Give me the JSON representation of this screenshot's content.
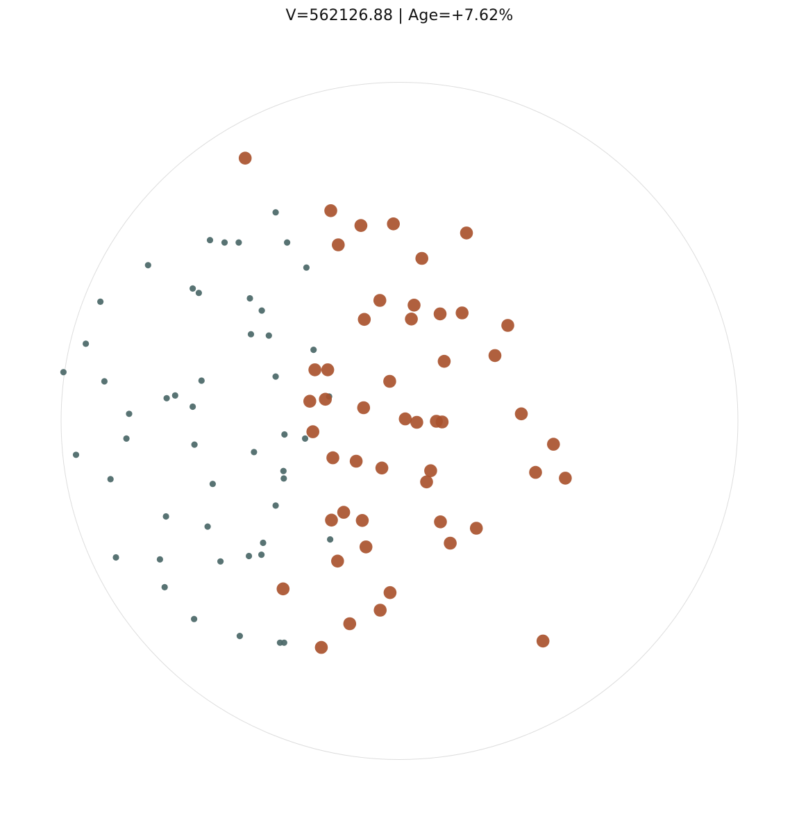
{
  "chart_data": {
    "type": "scatter",
    "title": "V=562126.88 | Age=+7.62%",
    "xlim": [
      -1,
      1
    ],
    "ylim": [
      -1,
      1
    ],
    "boundary": "circle",
    "grid": false,
    "colors": {
      "boundary": "#dddddd",
      "small_points": "#4f6b6b",
      "large_points": "#a9532e"
    },
    "series": [
      {
        "marker_size": "small",
        "points": [
          [
            -0.366,
            0.616
          ],
          [
            -0.56,
            0.534
          ],
          [
            -0.517,
            0.527
          ],
          [
            -0.475,
            0.527
          ],
          [
            -0.332,
            0.527
          ],
          [
            -0.743,
            0.46
          ],
          [
            -0.275,
            0.453
          ],
          [
            -0.611,
            0.391
          ],
          [
            -0.593,
            0.378
          ],
          [
            -0.884,
            0.352
          ],
          [
            -0.442,
            0.362
          ],
          [
            -0.407,
            0.326
          ],
          [
            -0.439,
            0.256
          ],
          [
            -0.386,
            0.252
          ],
          [
            -0.927,
            0.228
          ],
          [
            -0.254,
            0.21
          ],
          [
            -0.993,
            0.144
          ],
          [
            -0.872,
            0.117
          ],
          [
            -0.585,
            0.119
          ],
          [
            -0.366,
            0.131
          ],
          [
            -0.663,
            0.075
          ],
          [
            -0.688,
            0.067
          ],
          [
            -0.611,
            0.042
          ],
          [
            -0.799,
            0.021
          ],
          [
            -0.208,
            0.072
          ],
          [
            -0.807,
            -0.052
          ],
          [
            -0.34,
            -0.04
          ],
          [
            -0.279,
            -0.052
          ],
          [
            -0.606,
            -0.07
          ],
          [
            -0.43,
            -0.092
          ],
          [
            -0.956,
            -0.1
          ],
          [
            -0.342,
            -0.17
          ],
          [
            -0.854,
            -0.172
          ],
          [
            -0.552,
            -0.186
          ],
          [
            -0.343,
            -0.148
          ],
          [
            -0.366,
            -0.25
          ],
          [
            -0.69,
            -0.282
          ],
          [
            -0.567,
            -0.312
          ],
          [
            -0.205,
            -0.35
          ],
          [
            -0.403,
            -0.36
          ],
          [
            -0.838,
            -0.403
          ],
          [
            -0.708,
            -0.409
          ],
          [
            -0.529,
            -0.415
          ],
          [
            -0.445,
            -0.399
          ],
          [
            -0.408,
            -0.395
          ],
          [
            -0.694,
            -0.491
          ],
          [
            -0.607,
            -0.585
          ],
          [
            -0.472,
            -0.635
          ],
          [
            -0.353,
            -0.655
          ],
          [
            -0.341,
            -0.655
          ]
        ]
      },
      {
        "marker_size": "large",
        "points": [
          [
            -0.456,
            0.776
          ],
          [
            -0.203,
            0.621
          ],
          [
            -0.114,
            0.577
          ],
          [
            -0.018,
            0.582
          ],
          [
            0.198,
            0.555
          ],
          [
            -0.181,
            0.52
          ],
          [
            0.066,
            0.48
          ],
          [
            -0.058,
            0.356
          ],
          [
            0.043,
            0.342
          ],
          [
            -0.104,
            0.3
          ],
          [
            0.035,
            0.301
          ],
          [
            0.12,
            0.316
          ],
          [
            0.185,
            0.319
          ],
          [
            0.32,
            0.282
          ],
          [
            0.282,
            0.193
          ],
          [
            0.132,
            0.176
          ],
          [
            -0.25,
            0.151
          ],
          [
            -0.212,
            0.151
          ],
          [
            -0.029,
            0.117
          ],
          [
            -0.265,
            0.058
          ],
          [
            -0.219,
            0.064
          ],
          [
            -0.106,
            0.039
          ],
          [
            0.017,
            0.006
          ],
          [
            0.051,
            -0.004
          ],
          [
            0.109,
            -0.001
          ],
          [
            0.126,
            -0.003
          ],
          [
            0.36,
            0.021
          ],
          [
            -0.256,
            -0.032
          ],
          [
            0.455,
            -0.069
          ],
          [
            -0.197,
            -0.109
          ],
          [
            -0.128,
            -0.119
          ],
          [
            -0.052,
            -0.139
          ],
          [
            0.092,
            -0.147
          ],
          [
            0.08,
            -0.18
          ],
          [
            0.402,
            -0.152
          ],
          [
            0.49,
            -0.169
          ],
          [
            -0.165,
            -0.27
          ],
          [
            -0.201,
            -0.293
          ],
          [
            -0.11,
            -0.294
          ],
          [
            0.121,
            -0.298
          ],
          [
            0.227,
            -0.317
          ],
          [
            0.15,
            -0.361
          ],
          [
            -0.099,
            -0.372
          ],
          [
            -0.183,
            -0.414
          ],
          [
            -0.344,
            -0.496
          ],
          [
            -0.028,
            -0.507
          ],
          [
            -0.057,
            -0.559
          ],
          [
            -0.147,
            -0.599
          ],
          [
            -0.231,
            -0.669
          ],
          [
            0.424,
            -0.65
          ]
        ]
      }
    ]
  }
}
